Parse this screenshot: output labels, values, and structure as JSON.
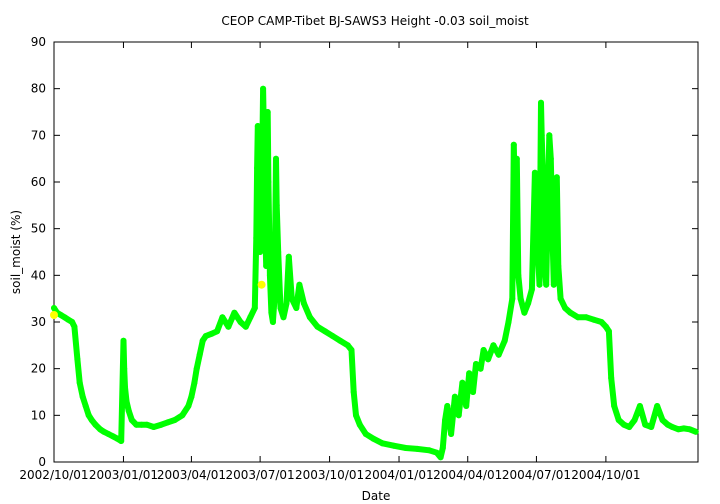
{
  "chart_data": {
    "type": "scatter",
    "title": "CEOP CAMP-Tibet BJ-SAWS3 Height -0.03 soil_moist",
    "xlabel": "Date",
    "ylabel": "soil_moist (%)",
    "xlim": [
      "2002-10-01",
      "2005-01-31"
    ],
    "ylim": [
      0,
      90
    ],
    "y_ticks": [
      0,
      10,
      20,
      30,
      40,
      50,
      60,
      70,
      80,
      90
    ],
    "x_ticks": [
      {
        "date": "2002-10-01",
        "label": "2002/10/01"
      },
      {
        "date": "2003-01-01",
        "label": "2003/01/01"
      },
      {
        "date": "2003-04-01",
        "label": "2003/04/01"
      },
      {
        "date": "2003-07-01",
        "label": "2003/07/01"
      },
      {
        "date": "2003-10-01",
        "label": "2003/10/01"
      },
      {
        "date": "2004-01-01",
        "label": "2004/01/01"
      },
      {
        "date": "2004-04-01",
        "label": "2004/04/01"
      },
      {
        "date": "2004-07-01",
        "label": "2004/07/01"
      },
      {
        "date": "2004-10-01",
        "label": "2004/10/01"
      }
    ],
    "grid": false,
    "series": [
      {
        "color": "#00ff00",
        "points": [
          [
            "2002-10-01",
            33
          ],
          [
            "2002-10-05",
            32
          ],
          [
            "2002-10-10",
            31.5
          ],
          [
            "2002-10-15",
            31
          ],
          [
            "2002-10-20",
            30.5
          ],
          [
            "2002-10-25",
            30
          ],
          [
            "2002-10-28",
            29
          ],
          [
            "2002-11-01",
            22
          ],
          [
            "2002-11-04",
            17
          ],
          [
            "2002-11-08",
            14
          ],
          [
            "2002-11-12",
            12
          ],
          [
            "2002-11-16",
            10
          ],
          [
            "2002-11-20",
            9
          ],
          [
            "2002-11-25",
            8
          ],
          [
            "2002-12-01",
            7
          ],
          [
            "2002-12-06",
            6.5
          ],
          [
            "2002-12-12",
            6
          ],
          [
            "2002-12-18",
            5.5
          ],
          [
            "2002-12-24",
            5
          ],
          [
            "2002-12-29",
            4.5
          ],
          [
            "2003-01-01",
            26
          ],
          [
            "2003-01-02",
            20
          ],
          [
            "2003-01-03",
            16
          ],
          [
            "2003-01-05",
            13
          ],
          [
            "2003-01-08",
            11
          ],
          [
            "2003-01-12",
            9
          ],
          [
            "2003-01-18",
            8
          ],
          [
            "2003-01-25",
            8
          ],
          [
            "2003-02-01",
            8
          ],
          [
            "2003-02-10",
            7.5
          ],
          [
            "2003-02-20",
            8
          ],
          [
            "2003-03-01",
            8.5
          ],
          [
            "2003-03-10",
            9
          ],
          [
            "2003-03-20",
            10
          ],
          [
            "2003-03-28",
            12
          ],
          [
            "2003-04-01",
            14
          ],
          [
            "2003-04-05",
            17
          ],
          [
            "2003-04-08",
            20
          ],
          [
            "2003-04-12",
            23
          ],
          [
            "2003-04-16",
            26
          ],
          [
            "2003-04-20",
            27
          ],
          [
            "2003-04-28",
            27.5
          ],
          [
            "2003-05-05",
            28
          ],
          [
            "2003-05-12",
            31
          ],
          [
            "2003-05-20",
            29
          ],
          [
            "2003-05-28",
            32
          ],
          [
            "2003-06-05",
            30
          ],
          [
            "2003-06-12",
            29
          ],
          [
            "2003-06-18",
            31
          ],
          [
            "2003-06-24",
            33
          ],
          [
            "2003-06-26",
            48
          ],
          [
            "2003-06-27",
            63
          ],
          [
            "2003-06-28",
            72
          ],
          [
            "2003-06-29",
            60
          ],
          [
            "2003-07-01",
            45
          ],
          [
            "2003-07-03",
            55
          ],
          [
            "2003-07-05",
            80
          ],
          [
            "2003-07-06",
            70
          ],
          [
            "2003-07-07",
            55
          ],
          [
            "2003-07-09",
            42
          ],
          [
            "2003-07-10",
            65
          ],
          [
            "2003-07-11",
            75
          ],
          [
            "2003-07-12",
            60
          ],
          [
            "2003-07-14",
            40
          ],
          [
            "2003-07-16",
            32
          ],
          [
            "2003-07-18",
            30
          ],
          [
            "2003-07-20",
            35
          ],
          [
            "2003-07-22",
            65
          ],
          [
            "2003-07-23",
            55
          ],
          [
            "2003-07-25",
            45
          ],
          [
            "2003-07-28",
            33
          ],
          [
            "2003-08-01",
            31
          ],
          [
            "2003-08-05",
            34
          ],
          [
            "2003-08-08",
            44
          ],
          [
            "2003-08-12",
            35
          ],
          [
            "2003-08-18",
            33
          ],
          [
            "2003-08-22",
            38
          ],
          [
            "2003-08-28",
            34
          ],
          [
            "2003-09-05",
            31
          ],
          [
            "2003-09-15",
            29
          ],
          [
            "2003-09-25",
            28
          ],
          [
            "2003-10-05",
            27
          ],
          [
            "2003-10-15",
            26
          ],
          [
            "2003-10-25",
            25
          ],
          [
            "2003-10-30",
            24
          ],
          [
            "2003-11-02",
            15
          ],
          [
            "2003-11-05",
            10
          ],
          [
            "2003-11-10",
            8
          ],
          [
            "2003-11-18",
            6
          ],
          [
            "2003-11-28",
            5
          ],
          [
            "2003-12-10",
            4
          ],
          [
            "2003-12-25",
            3.5
          ],
          [
            "2004-01-10",
            3
          ],
          [
            "2004-01-25",
            2.8
          ],
          [
            "2004-02-10",
            2.5
          ],
          [
            "2004-02-20",
            2
          ],
          [
            "2004-02-25",
            1
          ],
          [
            "2004-02-28",
            3
          ],
          [
            "2004-03-02",
            9
          ],
          [
            "2004-03-05",
            12
          ],
          [
            "2004-03-10",
            6
          ],
          [
            "2004-03-15",
            14
          ],
          [
            "2004-03-20",
            10
          ],
          [
            "2004-03-25",
            17
          ],
          [
            "2004-03-30",
            12
          ],
          [
            "2004-04-03",
            19
          ],
          [
            "2004-04-08",
            15
          ],
          [
            "2004-04-12",
            21
          ],
          [
            "2004-04-18",
            20
          ],
          [
            "2004-04-22",
            24
          ],
          [
            "2004-04-28",
            22
          ],
          [
            "2004-05-05",
            25
          ],
          [
            "2004-05-12",
            23
          ],
          [
            "2004-05-20",
            26
          ],
          [
            "2004-05-25",
            30
          ],
          [
            "2004-05-30",
            35
          ],
          [
            "2004-06-01",
            68
          ],
          [
            "2004-06-03",
            50
          ],
          [
            "2004-06-05",
            65
          ],
          [
            "2004-06-07",
            40
          ],
          [
            "2004-06-10",
            35
          ],
          [
            "2004-06-15",
            32
          ],
          [
            "2004-06-20",
            34
          ],
          [
            "2004-06-25",
            37
          ],
          [
            "2004-06-29",
            62
          ],
          [
            "2004-07-01",
            55
          ],
          [
            "2004-07-03",
            45
          ],
          [
            "2004-07-05",
            38
          ],
          [
            "2004-07-07",
            77
          ],
          [
            "2004-07-08",
            70
          ],
          [
            "2004-07-10",
            60
          ],
          [
            "2004-07-12",
            42
          ],
          [
            "2004-07-14",
            38
          ],
          [
            "2004-07-16",
            55
          ],
          [
            "2004-07-18",
            70
          ],
          [
            "2004-07-20",
            65
          ],
          [
            "2004-07-22",
            50
          ],
          [
            "2004-07-24",
            38
          ],
          [
            "2004-07-26",
            48
          ],
          [
            "2004-07-28",
            61
          ],
          [
            "2004-07-30",
            42
          ],
          [
            "2004-08-02",
            35
          ],
          [
            "2004-08-08",
            33
          ],
          [
            "2004-08-15",
            32
          ],
          [
            "2004-08-25",
            31
          ],
          [
            "2004-09-05",
            31
          ],
          [
            "2004-09-15",
            30.5
          ],
          [
            "2004-09-25",
            30
          ],
          [
            "2004-10-01",
            29
          ],
          [
            "2004-10-05",
            28
          ],
          [
            "2004-10-08",
            18
          ],
          [
            "2004-10-12",
            12
          ],
          [
            "2004-10-18",
            9
          ],
          [
            "2004-10-25",
            8
          ],
          [
            "2004-11-01",
            7.5
          ],
          [
            "2004-11-08",
            9
          ],
          [
            "2004-11-15",
            12
          ],
          [
            "2004-11-22",
            8
          ],
          [
            "2004-11-30",
            7.5
          ],
          [
            "2004-12-08",
            12
          ],
          [
            "2004-12-15",
            9
          ],
          [
            "2004-12-22",
            8
          ],
          [
            "2004-12-28",
            7.5
          ],
          [
            "2005-01-05",
            7
          ],
          [
            "2005-01-12",
            7.2
          ],
          [
            "2005-01-20",
            7
          ],
          [
            "2005-01-28",
            6.5
          ]
        ]
      },
      {
        "color": "#ffff00",
        "points": [
          [
            "2002-10-01",
            31.5
          ],
          [
            "2003-07-03",
            38
          ]
        ]
      }
    ]
  }
}
